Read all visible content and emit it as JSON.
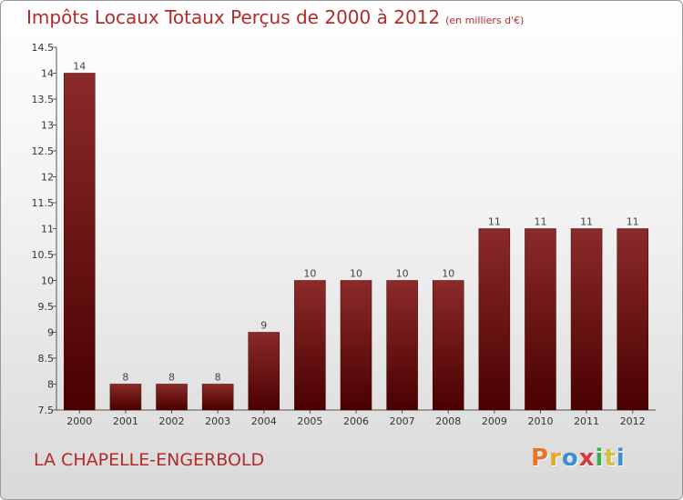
{
  "header": {
    "title": "Impôts Locaux Totaux Perçus de 2000 à 2012",
    "unit": "(en milliers d'€)"
  },
  "footer": {
    "location": "LA CHAPELLE-ENGERBOLD",
    "logo": "Proxiti"
  },
  "colors": {
    "bar_top": "#8b2a2a",
    "bar_bottom": "#4a0000",
    "title": "#b22a2a",
    "logo": [
      "#e8742a",
      "#e8a52a",
      "#3b8fd1",
      "#d13b3b",
      "#3bb04a",
      "#d1c23b",
      "#3b8fd1"
    ]
  },
  "chart_data": {
    "type": "bar",
    "title": "Impôts Locaux Totaux Perçus de 2000 à 2012",
    "xlabel": "",
    "ylabel": "",
    "categories": [
      "2000",
      "2001",
      "2002",
      "2003",
      "2004",
      "2005",
      "2006",
      "2007",
      "2008",
      "2009",
      "2010",
      "2011",
      "2012"
    ],
    "values": [
      14,
      8,
      8,
      8,
      9,
      10,
      10,
      10,
      10,
      11,
      11,
      11,
      11
    ],
    "value_labels": [
      "14",
      "8",
      "8",
      "8",
      "9",
      "10",
      "10",
      "10",
      "10",
      "11",
      "11",
      "11",
      "11"
    ],
    "ylim": [
      7.5,
      14.5
    ],
    "yticks": [
      "7.5",
      "8",
      "8.5",
      "9",
      "9.5",
      "10",
      "10.5",
      "11",
      "11.5",
      "12",
      "12.5",
      "13",
      "13.5",
      "14",
      "14.5"
    ],
    "grid": false
  }
}
